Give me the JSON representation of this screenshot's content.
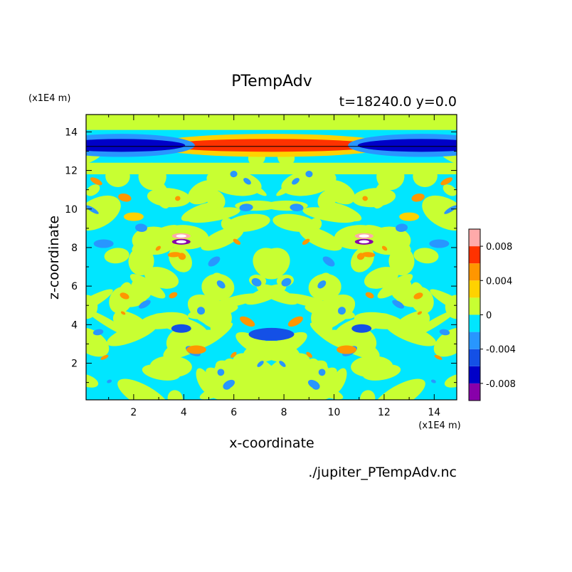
{
  "chart_data": {
    "type": "heatmap",
    "title": "PTempAdv",
    "subtitle": "t=18240.0 y=0.0",
    "xlabel": "x-coordinate",
    "ylabel": "z-coordinate",
    "x_unit": "(x1E4 m)",
    "z_unit": "(x1E4 m)",
    "source": "./jupiter_PTempAdv.nc",
    "xlim": [
      0.1,
      14.9
    ],
    "ylim": [
      0.1,
      14.9
    ],
    "xticks": [
      "2",
      "4",
      "6",
      "8",
      "10",
      "12",
      "14"
    ],
    "yticks": [
      "2",
      "4",
      "6",
      "8",
      "10",
      "12",
      "14"
    ],
    "colorbar": {
      "levels": [
        -0.01,
        -0.008,
        -0.006,
        -0.004,
        -0.002,
        0,
        0.002,
        0.004,
        0.006,
        0.008,
        0.01
      ],
      "colors": [
        "#8800aa",
        "#0000c8",
        "#1450e6",
        "#2896ff",
        "#00e6ff",
        "#c8ff32",
        "#ffd200",
        "#ff9600",
        "#ff3200",
        "#ffaaaa"
      ],
      "tick_labels": [
        "0.008",
        "0.004",
        "0",
        "-0.004",
        "-0.008"
      ]
    },
    "features": [
      {
        "x": 7.5,
        "z": 13.3,
        "value": 0.007
      },
      {
        "x": 1.5,
        "z": 13.3,
        "value": -0.007
      },
      {
        "x": 13.5,
        "z": 13.3,
        "value": -0.007
      },
      {
        "x": 3.9,
        "z": 8.6,
        "value": 0.009
      },
      {
        "x": 3.9,
        "z": 8.3,
        "value": -0.009
      },
      {
        "x": 11.2,
        "z": 8.6,
        "value": 0.009
      },
      {
        "x": 11.2,
        "z": 8.3,
        "value": -0.009
      },
      {
        "x": 7.5,
        "z": 3.5,
        "value": -0.006
      },
      {
        "x": 7.5,
        "z": 8.5,
        "value": -0.001
      },
      {
        "x": 3.9,
        "z": 3.8,
        "value": -0.005
      },
      {
        "x": 11.1,
        "z": 3.8,
        "value": -0.005
      },
      {
        "x": 4.5,
        "z": 2.7,
        "value": 0.004
      },
      {
        "x": 10.5,
        "z": 2.7,
        "value": 0.004
      },
      {
        "x": 2.0,
        "z": 9.6,
        "value": 0.003
      },
      {
        "x": 13.0,
        "z": 9.6,
        "value": 0.003
      },
      {
        "x": 0.8,
        "z": 8.2,
        "value": -0.004
      },
      {
        "x": 14.2,
        "z": 8.2,
        "value": -0.004
      }
    ]
  }
}
